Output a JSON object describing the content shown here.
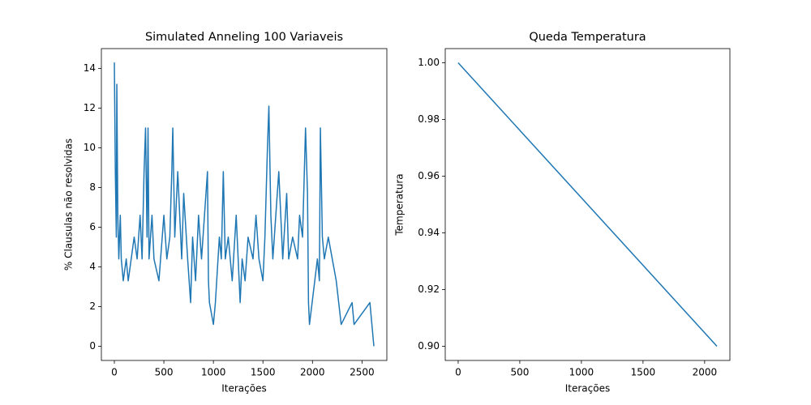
{
  "chart_data": [
    {
      "type": "line",
      "title": "Simulated Anneling 100 Variaveis",
      "xlabel": "Iterações",
      "ylabel": "% Clausulas não resolvidas",
      "x": [
        0,
        10,
        20,
        25,
        35,
        45,
        60,
        70,
        90,
        120,
        140,
        200,
        230,
        260,
        280,
        300,
        315,
        330,
        340,
        350,
        380,
        400,
        450,
        500,
        530,
        560,
        580,
        590,
        610,
        640,
        660,
        680,
        700,
        740,
        770,
        790,
        820,
        850,
        880,
        940,
        950,
        960,
        1000,
        1020,
        1060,
        1080,
        1100,
        1120,
        1150,
        1190,
        1230,
        1270,
        1290,
        1320,
        1350,
        1400,
        1430,
        1460,
        1500,
        1520,
        1545,
        1560,
        1580,
        1600,
        1660,
        1700,
        1740,
        1760,
        1800,
        1850,
        1870,
        1900,
        1930,
        1950,
        1960,
        1970,
        2050,
        2070,
        2080,
        2100,
        2120,
        2160,
        2200,
        2240,
        2290,
        2400,
        2420,
        2580,
        2600,
        2620
      ],
      "series": [
        {
          "name": "clausulas",
          "color": "#1f77b4",
          "values": [
            14.3,
            8.8,
            5.5,
            13.2,
            6.6,
            4.4,
            6.6,
            4.4,
            3.3,
            4.4,
            3.3,
            5.5,
            4.4,
            6.6,
            4.4,
            8.8,
            11,
            5.5,
            11,
            4.4,
            6.6,
            4.4,
            3.3,
            6.6,
            4.4,
            5.5,
            8.8,
            11,
            5.5,
            8.8,
            6.6,
            4.4,
            7.7,
            4.4,
            2.2,
            5.5,
            3.3,
            6.6,
            4.4,
            8.8,
            3.3,
            2.2,
            1.1,
            2.2,
            5.5,
            4.4,
            8.8,
            4.4,
            5.5,
            3.3,
            6.6,
            2.2,
            4.4,
            3.3,
            5.5,
            4.4,
            6.6,
            4.4,
            3.3,
            5.5,
            9.9,
            12.1,
            6.6,
            4.4,
            8.8,
            4.4,
            7.7,
            4.4,
            5.5,
            4.4,
            6.6,
            5.5,
            11,
            7.7,
            2.2,
            1.1,
            4.4,
            3.3,
            11,
            5.5,
            4.4,
            5.5,
            4.4,
            3.3,
            1.1,
            2.2,
            1.1,
            2.2,
            1.1,
            0
          ]
        }
      ],
      "xlim": [
        -131,
        2751
      ],
      "ylim": [
        -0.715,
        15.0
      ],
      "xticks": [
        0,
        500,
        1000,
        1500,
        2000,
        2500
      ],
      "yticks": [
        0,
        2,
        4,
        6,
        8,
        10,
        12,
        14
      ]
    },
    {
      "type": "line",
      "title": "Queda Temperatura",
      "xlabel": "Iterações",
      "ylabel": "Temperatura",
      "x": [
        0,
        2100
      ],
      "series": [
        {
          "name": "temperatura",
          "color": "#1f77b4",
          "values": [
            1.0,
            0.9
          ]
        }
      ],
      "xlim": [
        -105,
        2205
      ],
      "ylim": [
        0.895,
        1.005
      ],
      "xticks": [
        0,
        500,
        1000,
        1500,
        2000
      ],
      "yticks": [
        {
          "value": 0.9,
          "label": "0.90"
        },
        {
          "value": 0.92,
          "label": "0.92"
        },
        {
          "value": 0.94,
          "label": "0.94"
        },
        {
          "value": 0.96,
          "label": "0.96"
        },
        {
          "value": 0.98,
          "label": "0.98"
        },
        {
          "value": 1.0,
          "label": "1.00"
        }
      ]
    }
  ]
}
